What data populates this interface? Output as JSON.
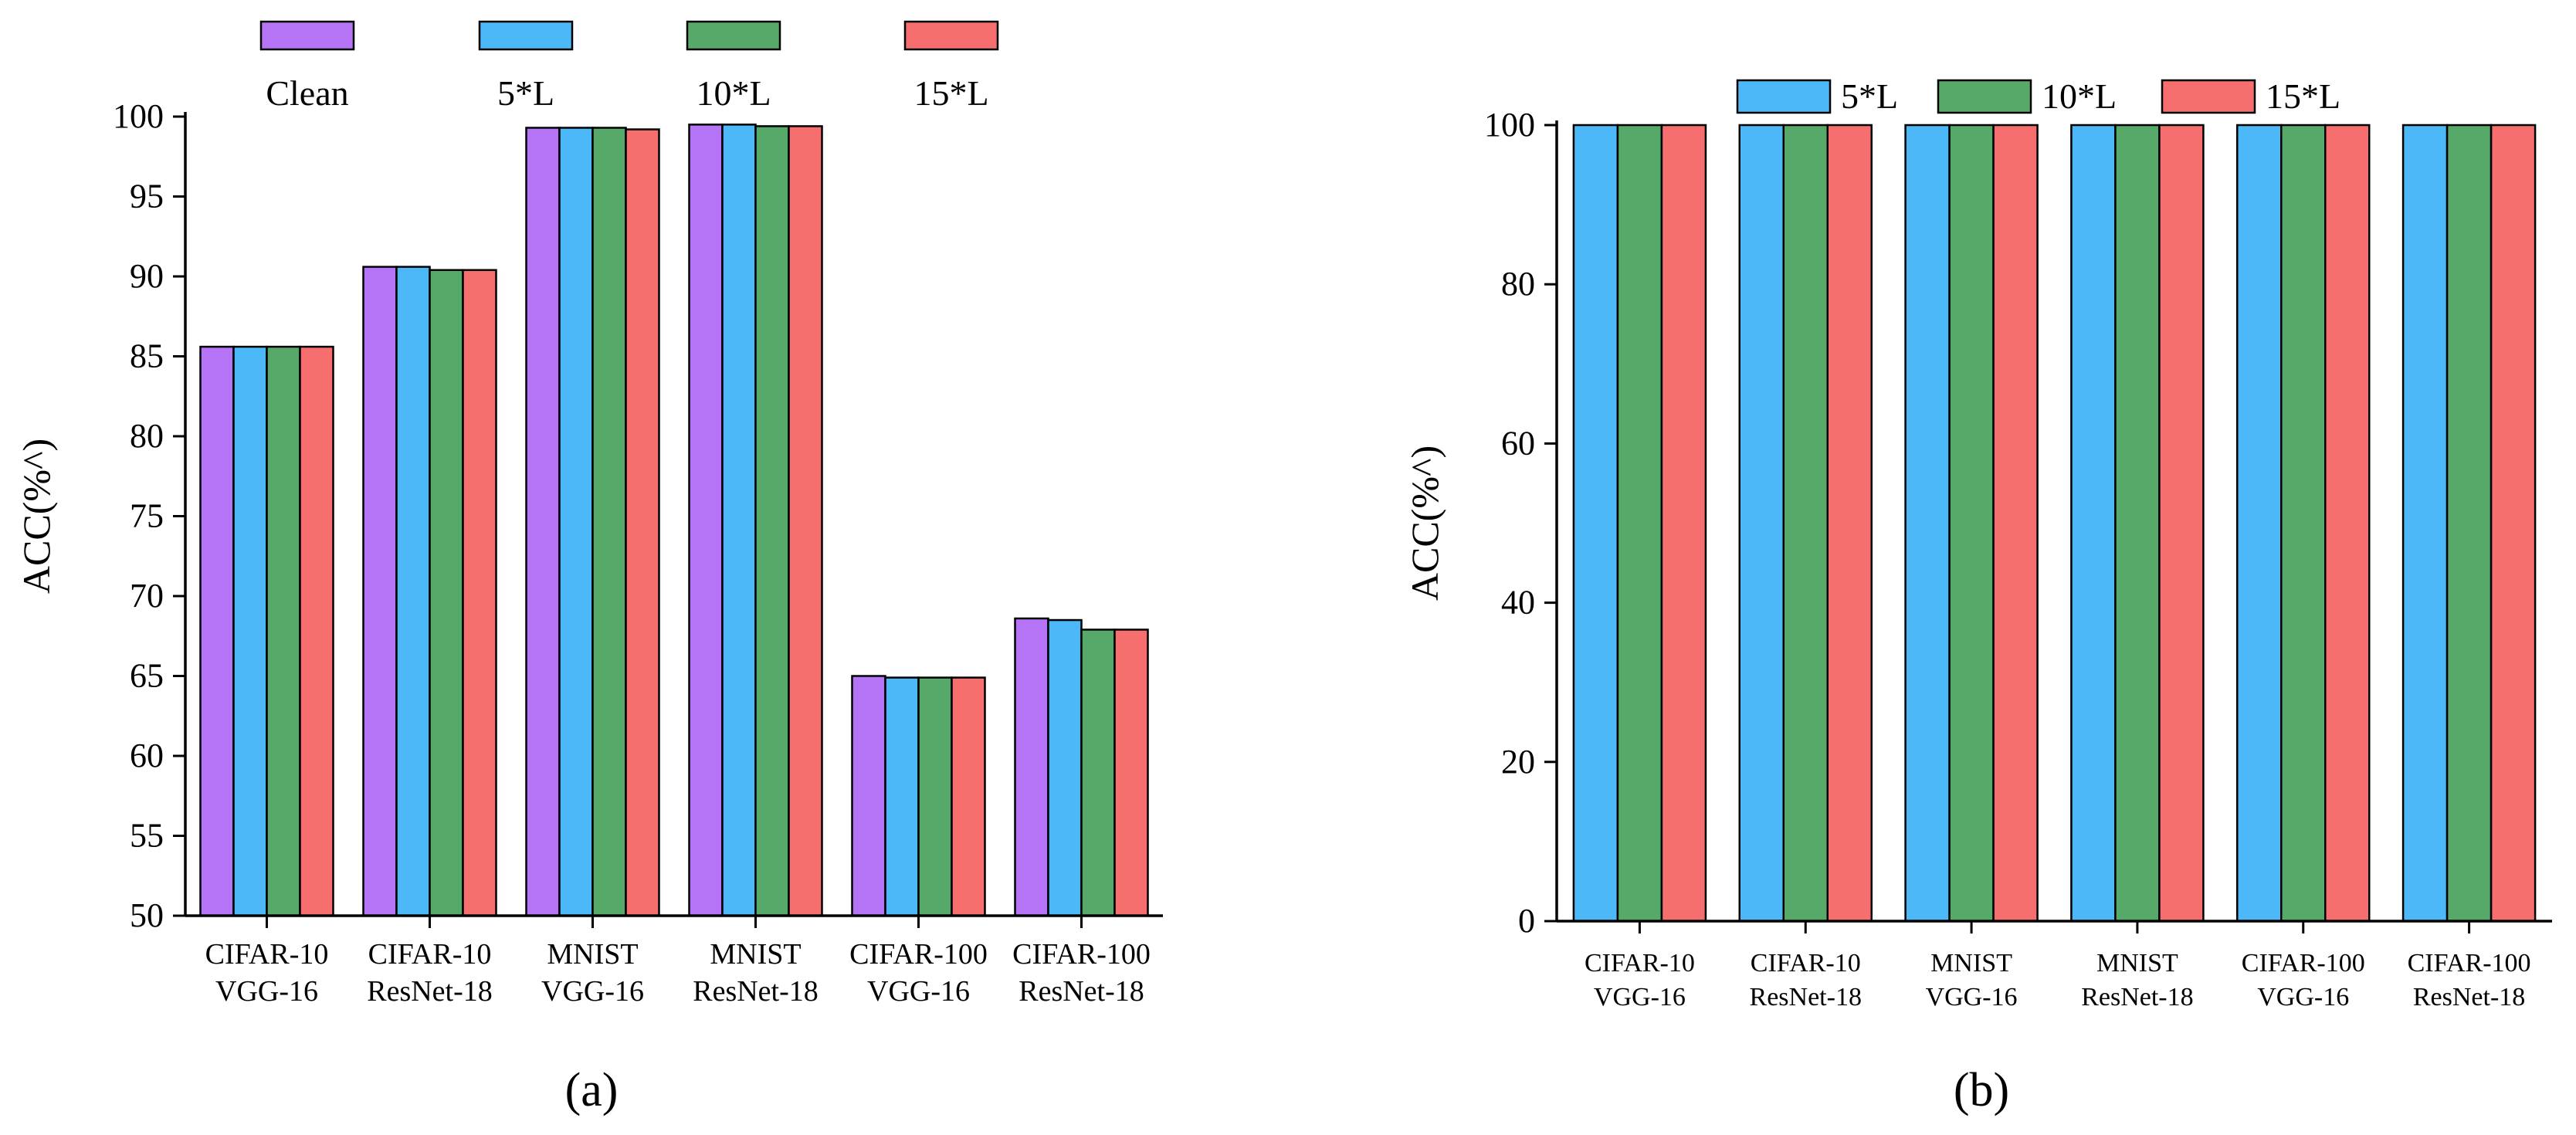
{
  "colors": {
    "clean": "#B574F6",
    "l5": "#4DB8F8",
    "l10": "#57A96A",
    "l15": "#F76E6E",
    "axis": "#000000"
  },
  "chart_data": [
    {
      "type": "bar",
      "panel_label": "(a)",
      "ylabel": "ACC(%^)",
      "ylim": [
        50,
        100
      ],
      "yticks": [
        50,
        55,
        60,
        65,
        70,
        75,
        80,
        85,
        90,
        95,
        100
      ],
      "categories": [
        [
          "CIFAR-10",
          "VGG-16"
        ],
        [
          "CIFAR-10",
          "ResNet-18"
        ],
        [
          "MNIST",
          "VGG-16"
        ],
        [
          "MNIST",
          "ResNet-18"
        ],
        [
          "CIFAR-100",
          "VGG-16"
        ],
        [
          "CIFAR-100",
          "ResNet-18"
        ]
      ],
      "legend_position": "top",
      "series": [
        {
          "name": "Clean",
          "color_key": "clean",
          "values": [
            85.6,
            90.6,
            99.3,
            99.5,
            65.0,
            68.6
          ]
        },
        {
          "name": "5*L",
          "color_key": "l5",
          "values": [
            85.6,
            90.6,
            99.3,
            99.5,
            64.9,
            68.5
          ]
        },
        {
          "name": "10*L",
          "color_key": "l10",
          "values": [
            85.6,
            90.4,
            99.3,
            99.4,
            64.9,
            67.9
          ]
        },
        {
          "name": "15*L",
          "color_key": "l15",
          "values": [
            85.6,
            90.4,
            99.2,
            99.4,
            64.9,
            67.9
          ]
        }
      ]
    },
    {
      "type": "bar",
      "panel_label": "(b)",
      "ylabel": "ACC(%^)",
      "ylim": [
        0,
        100
      ],
      "yticks": [
        0,
        20,
        40,
        60,
        80,
        100
      ],
      "categories": [
        [
          "CIFAR-10",
          "VGG-16"
        ],
        [
          "CIFAR-10",
          "ResNet-18"
        ],
        [
          "MNIST",
          "VGG-16"
        ],
        [
          "MNIST",
          "ResNet-18"
        ],
        [
          "CIFAR-100",
          "VGG-16"
        ],
        [
          "CIFAR-100",
          "ResNet-18"
        ]
      ],
      "legend_position": "top",
      "series": [
        {
          "name": "5*L",
          "color_key": "l5",
          "values": [
            100,
            100,
            100,
            100,
            100,
            100
          ]
        },
        {
          "name": "10*L",
          "color_key": "l10",
          "values": [
            100,
            100,
            100,
            100,
            100,
            100
          ]
        },
        {
          "name": "15*L",
          "color_key": "l15",
          "values": [
            100,
            100,
            100,
            100,
            100,
            100
          ]
        }
      ]
    }
  ]
}
